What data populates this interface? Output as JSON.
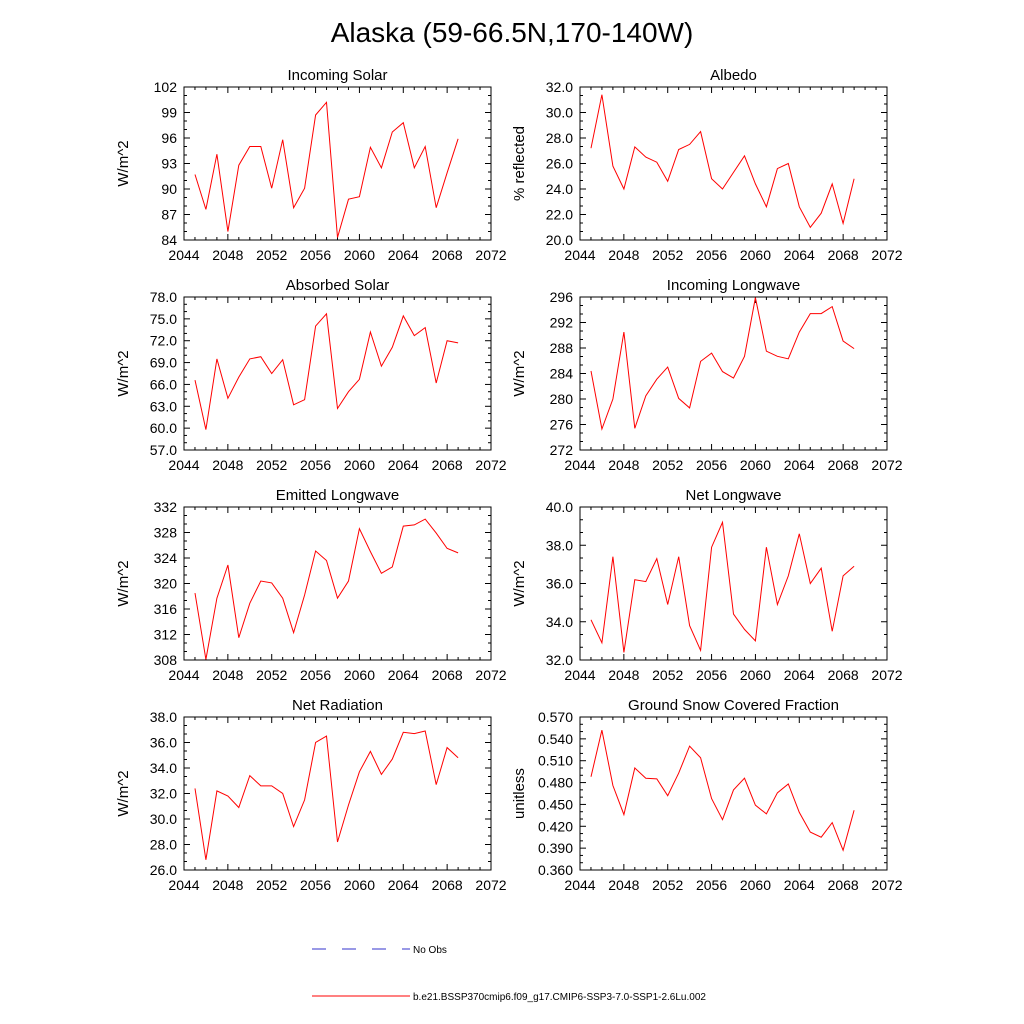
{
  "title": "Alaska (59-66.5N,170-140W)",
  "colors": {
    "model": "#ff0000",
    "obs": "#3333cc",
    "axis": "#000000"
  },
  "legend": {
    "obs_label": "No Obs",
    "model_label": "b.e21.BSSP370cmip6.f09_g17.CMIP6-SSP3-7.0-SSP1-2.6Lu.002"
  },
  "chart_data": [
    {
      "type": "line",
      "title": "Incoming Solar",
      "ylabel": "W/m^2",
      "xlim": [
        2044,
        2072
      ],
      "xticks": [
        2044,
        2048,
        2052,
        2056,
        2060,
        2064,
        2068,
        2072
      ],
      "ylim": [
        84,
        102
      ],
      "yticks": [
        "84",
        "87",
        "90",
        "93",
        "96",
        "99",
        "102"
      ],
      "x": [
        2045,
        2046,
        2047,
        2048,
        2049,
        2050,
        2051,
        2052,
        2053,
        2054,
        2055,
        2056,
        2057,
        2058,
        2059,
        2060,
        2061,
        2062,
        2063,
        2064,
        2065,
        2066,
        2067,
        2068,
        2069
      ],
      "values": [
        91.7,
        87.6,
        94.1,
        85.0,
        92.8,
        95.0,
        95.0,
        90.1,
        95.8,
        87.8,
        90.1,
        98.7,
        100.2,
        84.3,
        88.8,
        89.1,
        94.9,
        92.5,
        96.7,
        97.8,
        92.5,
        95.0,
        87.8,
        91.9,
        95.9
      ]
    },
    {
      "type": "line",
      "title": "Albedo",
      "ylabel": "% reflected",
      "xlim": [
        2044,
        2072
      ],
      "xticks": [
        2044,
        2048,
        2052,
        2056,
        2060,
        2064,
        2068,
        2072
      ],
      "ylim": [
        20,
        32
      ],
      "yticks": [
        "20.0",
        "22.0",
        "24.0",
        "26.0",
        "28.0",
        "30.0",
        "32.0"
      ],
      "x": [
        2045,
        2046,
        2047,
        2048,
        2049,
        2050,
        2051,
        2052,
        2053,
        2054,
        2055,
        2056,
        2057,
        2058,
        2059,
        2060,
        2061,
        2062,
        2063,
        2064,
        2065,
        2066,
        2067,
        2068,
        2069
      ],
      "values": [
        27.2,
        31.4,
        25.8,
        24.0,
        27.3,
        26.5,
        26.1,
        24.6,
        27.1,
        27.5,
        28.5,
        24.8,
        24.0,
        25.3,
        26.6,
        24.4,
        22.6,
        25.6,
        26.0,
        22.6,
        21.0,
        22.1,
        24.4,
        21.3,
        24.8
      ]
    },
    {
      "type": "line",
      "title": "Absorbed Solar",
      "ylabel": "W/m^2",
      "xlim": [
        2044,
        2072
      ],
      "xticks": [
        2044,
        2048,
        2052,
        2056,
        2060,
        2064,
        2068,
        2072
      ],
      "ylim": [
        57,
        78
      ],
      "yticks": [
        "57.0",
        "60.0",
        "63.0",
        "66.0",
        "69.0",
        "72.0",
        "75.0",
        "78.0"
      ],
      "x": [
        2045,
        2046,
        2047,
        2048,
        2049,
        2050,
        2051,
        2052,
        2053,
        2054,
        2055,
        2056,
        2057,
        2058,
        2059,
        2060,
        2061,
        2062,
        2063,
        2064,
        2065,
        2066,
        2067,
        2068,
        2069
      ],
      "values": [
        66.6,
        59.8,
        69.5,
        64.1,
        67.0,
        69.5,
        69.8,
        67.5,
        69.4,
        63.2,
        63.9,
        74.0,
        75.7,
        62.7,
        65.0,
        66.7,
        73.2,
        68.5,
        71.1,
        75.4,
        72.7,
        73.8,
        66.2,
        72.0,
        71.7
      ]
    },
    {
      "type": "line",
      "title": "Incoming Longwave",
      "ylabel": "W/m^2",
      "xlim": [
        2044,
        2072
      ],
      "xticks": [
        2044,
        2048,
        2052,
        2056,
        2060,
        2064,
        2068,
        2072
      ],
      "ylim": [
        272,
        296
      ],
      "yticks": [
        "272",
        "276",
        "280",
        "284",
        "288",
        "292",
        "296"
      ],
      "x": [
        2045,
        2046,
        2047,
        2048,
        2049,
        2050,
        2051,
        2052,
        2053,
        2054,
        2055,
        2056,
        2057,
        2058,
        2059,
        2060,
        2061,
        2062,
        2063,
        2064,
        2065,
        2066,
        2067,
        2068,
        2069
      ],
      "values": [
        284.4,
        275.3,
        280.0,
        290.5,
        275.4,
        280.5,
        283.1,
        285.0,
        280.1,
        278.6,
        285.9,
        287.2,
        284.3,
        283.3,
        286.7,
        295.9,
        287.5,
        286.7,
        286.3,
        290.5,
        293.4,
        293.4,
        294.5,
        289.1,
        287.9
      ]
    },
    {
      "type": "line",
      "title": "Emitted Longwave",
      "ylabel": "W/m^2",
      "xlim": [
        2044,
        2072
      ],
      "xticks": [
        2044,
        2048,
        2052,
        2056,
        2060,
        2064,
        2068,
        2072
      ],
      "ylim": [
        308,
        332
      ],
      "yticks": [
        "308",
        "312",
        "316",
        "320",
        "324",
        "328",
        "332"
      ],
      "x": [
        2045,
        2046,
        2047,
        2048,
        2049,
        2050,
        2051,
        2052,
        2053,
        2054,
        2055,
        2056,
        2057,
        2058,
        2059,
        2060,
        2061,
        2062,
        2063,
        2064,
        2065,
        2066,
        2067,
        2068,
        2069
      ],
      "values": [
        318.5,
        308.1,
        317.7,
        322.9,
        311.5,
        316.9,
        320.4,
        320.1,
        317.7,
        312.3,
        318.2,
        325.1,
        323.6,
        317.7,
        320.4,
        328.6,
        325.0,
        321.6,
        322.6,
        329.0,
        329.2,
        330.1,
        327.9,
        325.5,
        324.8
      ]
    },
    {
      "type": "line",
      "title": "Net Longwave",
      "ylabel": "W/m^2",
      "xlim": [
        2044,
        2072
      ],
      "xticks": [
        2044,
        2048,
        2052,
        2056,
        2060,
        2064,
        2068,
        2072
      ],
      "ylim": [
        32,
        40
      ],
      "yticks": [
        "32.0",
        "34.0",
        "36.0",
        "38.0",
        "40.0"
      ],
      "x": [
        2045,
        2046,
        2047,
        2048,
        2049,
        2050,
        2051,
        2052,
        2053,
        2054,
        2055,
        2056,
        2057,
        2058,
        2059,
        2060,
        2061,
        2062,
        2063,
        2064,
        2065,
        2066,
        2067,
        2068,
        2069
      ],
      "values": [
        34.1,
        32.9,
        37.4,
        32.4,
        36.2,
        36.1,
        37.3,
        34.9,
        37.4,
        33.8,
        32.5,
        37.9,
        39.2,
        34.4,
        33.6,
        33.0,
        37.9,
        34.9,
        36.4,
        38.6,
        36.0,
        36.8,
        33.5,
        36.4,
        36.9
      ]
    },
    {
      "type": "line",
      "title": "Net Radiation",
      "ylabel": "W/m^2",
      "xlim": [
        2044,
        2072
      ],
      "xticks": [
        2044,
        2048,
        2052,
        2056,
        2060,
        2064,
        2068,
        2072
      ],
      "ylim": [
        26,
        38
      ],
      "yticks": [
        "26.0",
        "28.0",
        "30.0",
        "32.0",
        "34.0",
        "36.0",
        "38.0"
      ],
      "x": [
        2045,
        2046,
        2047,
        2048,
        2049,
        2050,
        2051,
        2052,
        2053,
        2054,
        2055,
        2056,
        2057,
        2058,
        2059,
        2060,
        2061,
        2062,
        2063,
        2064,
        2065,
        2066,
        2067,
        2068,
        2069
      ],
      "values": [
        32.4,
        26.8,
        32.2,
        31.8,
        30.9,
        33.4,
        32.6,
        32.6,
        32.0,
        29.4,
        31.5,
        36.0,
        36.5,
        28.2,
        31.1,
        33.7,
        35.3,
        33.5,
        34.7,
        36.8,
        36.7,
        36.9,
        32.7,
        35.6,
        34.8
      ]
    },
    {
      "type": "line",
      "title": "Ground Snow Covered Fraction",
      "ylabel": "unitless",
      "xlim": [
        2044,
        2072
      ],
      "xticks": [
        2044,
        2048,
        2052,
        2056,
        2060,
        2064,
        2068,
        2072
      ],
      "ylim": [
        0.36,
        0.57
      ],
      "yticks": [
        "0.360",
        "0.390",
        "0.420",
        "0.450",
        "0.480",
        "0.510",
        "0.540",
        "0.570"
      ],
      "x": [
        2045,
        2046,
        2047,
        2048,
        2049,
        2050,
        2051,
        2052,
        2053,
        2054,
        2055,
        2056,
        2057,
        2058,
        2059,
        2060,
        2061,
        2062,
        2063,
        2064,
        2065,
        2066,
        2067,
        2068,
        2069
      ],
      "values": [
        0.488,
        0.552,
        0.476,
        0.436,
        0.5,
        0.486,
        0.485,
        0.462,
        0.493,
        0.53,
        0.514,
        0.458,
        0.429,
        0.47,
        0.486,
        0.449,
        0.437,
        0.466,
        0.478,
        0.439,
        0.412,
        0.405,
        0.425,
        0.387,
        0.442
      ]
    }
  ]
}
